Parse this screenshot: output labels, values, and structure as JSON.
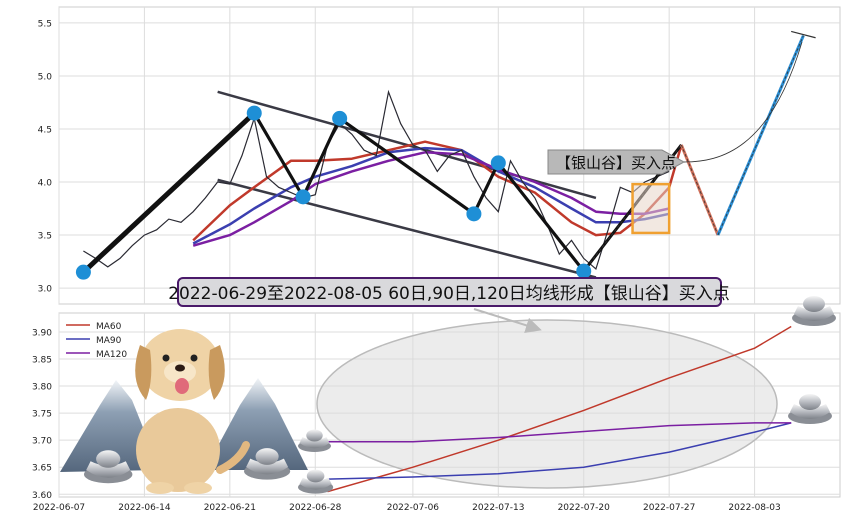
{
  "chart_data": [
    {
      "type": "line",
      "panel": "price",
      "ylim": [
        2.85,
        5.65
      ],
      "yticks": [
        "3.0",
        "3.5",
        "4.0",
        "4.5",
        "5.0",
        "5.5"
      ],
      "price_series": [
        [
          "2022-06-09",
          3.35
        ],
        [
          "2022-06-10",
          3.28
        ],
        [
          "2022-06-11",
          3.2
        ],
        [
          "2022-06-12",
          3.28
        ],
        [
          "2022-06-13",
          3.4
        ],
        [
          "2022-06-14",
          3.5
        ],
        [
          "2022-06-15",
          3.55
        ],
        [
          "2022-06-16",
          3.65
        ],
        [
          "2022-06-17",
          3.62
        ],
        [
          "2022-06-18",
          3.72
        ],
        [
          "2022-06-19",
          3.85
        ],
        [
          "2022-06-20",
          4.0
        ],
        [
          "2022-06-21",
          3.98
        ],
        [
          "2022-06-22",
          4.25
        ],
        [
          "2022-06-23",
          4.6
        ],
        [
          "2022-06-24",
          4.05
        ],
        [
          "2022-06-25",
          3.95
        ],
        [
          "2022-06-26",
          3.9
        ],
        [
          "2022-06-27",
          3.85
        ],
        [
          "2022-06-28",
          3.88
        ],
        [
          "2022-06-29",
          4.35
        ],
        [
          "2022-06-30",
          4.55
        ],
        [
          "2022-07-01",
          4.45
        ],
        [
          "2022-07-02",
          4.3
        ],
        [
          "2022-07-03",
          4.25
        ],
        [
          "2022-07-04",
          4.85
        ],
        [
          "2022-07-05",
          4.55
        ],
        [
          "2022-07-06",
          4.35
        ],
        [
          "2022-07-07",
          4.3
        ],
        [
          "2022-07-08",
          4.1
        ],
        [
          "2022-07-09",
          4.25
        ],
        [
          "2022-07-10",
          4.3
        ],
        [
          "2022-07-11",
          4.05
        ],
        [
          "2022-07-12",
          3.85
        ],
        [
          "2022-07-13",
          3.72
        ],
        [
          "2022-07-14",
          4.2
        ],
        [
          "2022-07-15",
          4.0
        ],
        [
          "2022-07-16",
          3.85
        ],
        [
          "2022-07-17",
          3.6
        ],
        [
          "2022-07-18",
          3.32
        ],
        [
          "2022-07-19",
          3.45
        ],
        [
          "2022-07-20",
          3.28
        ],
        [
          "2022-07-21",
          3.18
        ],
        [
          "2022-07-22",
          3.55
        ],
        [
          "2022-07-23",
          3.95
        ],
        [
          "2022-07-24",
          3.9
        ],
        [
          "2022-07-25",
          4.0
        ],
        [
          "2022-07-26",
          4.05
        ],
        [
          "2022-07-27",
          4.1
        ]
      ],
      "ma_series_price_panel": [
        {
          "color": "#c0392b",
          "points": [
            [
              "2022-06-18",
              3.45
            ],
            [
              "2022-06-21",
              3.78
            ],
            [
              "2022-06-23",
              3.95
            ],
            [
              "2022-06-26",
              4.2
            ],
            [
              "2022-06-28",
              4.2
            ],
            [
              "2022-07-01",
              4.22
            ],
            [
              "2022-07-04",
              4.3
            ],
            [
              "2022-07-07",
              4.38
            ],
            [
              "2022-07-10",
              4.3
            ],
            [
              "2022-07-13",
              4.05
            ],
            [
              "2022-07-16",
              3.9
            ],
            [
              "2022-07-19",
              3.62
            ],
            [
              "2022-07-21",
              3.5
            ],
            [
              "2022-07-23",
              3.52
            ],
            [
              "2022-07-25",
              3.7
            ],
            [
              "2022-07-27",
              3.95
            ],
            [
              "2022-07-28",
              4.35
            ]
          ]
        },
        {
          "color": "#3b3fb0",
          "points": [
            [
              "2022-06-18",
              3.42
            ],
            [
              "2022-06-21",
              3.6
            ],
            [
              "2022-06-23",
              3.75
            ],
            [
              "2022-06-26",
              3.95
            ],
            [
              "2022-06-28",
              4.05
            ],
            [
              "2022-07-01",
              4.15
            ],
            [
              "2022-07-04",
              4.28
            ],
            [
              "2022-07-07",
              4.32
            ],
            [
              "2022-07-10",
              4.3
            ],
            [
              "2022-07-13",
              4.1
            ],
            [
              "2022-07-16",
              3.95
            ],
            [
              "2022-07-19",
              3.75
            ],
            [
              "2022-07-21",
              3.62
            ],
            [
              "2022-07-23",
              3.62
            ],
            [
              "2022-07-25",
              3.65
            ],
            [
              "2022-07-27",
              3.7
            ]
          ]
        },
        {
          "color": "#7b1fa2",
          "points": [
            [
              "2022-06-18",
              3.4
            ],
            [
              "2022-06-21",
              3.5
            ],
            [
              "2022-06-23",
              3.62
            ],
            [
              "2022-06-26",
              3.82
            ],
            [
              "2022-06-28",
              3.98
            ],
            [
              "2022-07-01",
              4.1
            ],
            [
              "2022-07-04",
              4.2
            ],
            [
              "2022-07-07",
              4.28
            ],
            [
              "2022-07-10",
              4.26
            ],
            [
              "2022-07-13",
              4.12
            ],
            [
              "2022-07-16",
              4.0
            ],
            [
              "2022-07-19",
              3.85
            ],
            [
              "2022-07-21",
              3.72
            ],
            [
              "2022-07-23",
              3.7
            ],
            [
              "2022-07-25",
              3.7
            ],
            [
              "2022-07-27",
              3.75
            ]
          ]
        }
      ],
      "zigzag_points": [
        [
          "2022-06-09",
          3.15
        ],
        [
          "2022-06-23",
          4.65
        ],
        [
          "2022-06-27",
          3.86
        ],
        [
          "2022-06-30",
          4.6
        ],
        [
          "2022-07-11",
          3.7
        ],
        [
          "2022-07-13",
          4.18
        ],
        [
          "2022-07-20",
          3.16
        ]
      ],
      "channel_lines": [
        [
          [
            "2022-06-20",
            4.85
          ],
          [
            "2022-07-21",
            3.85
          ]
        ],
        [
          [
            "2022-06-20",
            4.02
          ],
          [
            "2022-07-21",
            3.1
          ]
        ]
      ],
      "projection": [
        [
          "2022-07-20",
          3.16
        ],
        [
          "2022-07-28",
          4.35
        ],
        [
          "2022-07-31",
          3.5
        ],
        [
          "2022-08-07",
          5.38
        ]
      ],
      "projection_cap": [
        [
          "2022-08-06",
          5.42
        ],
        [
          "2022-08-08",
          5.36
        ]
      ],
      "buy_box": {
        "x0": "2022-07-24",
        "x1": "2022-07-27",
        "y0": 3.52,
        "y1": 3.98
      },
      "buy_label": "【银山谷】买入点",
      "banner": "2022-06-29至2022-08-05 60日,90日,120日均线形成【银山谷】买入点"
    },
    {
      "type": "line",
      "panel": "moving-averages",
      "ylim": [
        3.595,
        3.935
      ],
      "yticks": [
        "3.60",
        "3.65",
        "3.70",
        "3.75",
        "3.80",
        "3.85",
        "3.90"
      ],
      "x_tick_labels": [
        "2022-06-07",
        "2022-06-14",
        "2022-06-21",
        "2022-06-28",
        "2022-07-06",
        "2022-07-13",
        "2022-07-20",
        "2022-07-27",
        "2022-08-03"
      ],
      "series": [
        {
          "name": "MA60",
          "color": "#c0392b",
          "points": [
            [
              "2022-06-29",
              3.605
            ],
            [
              "2022-07-06",
              3.65
            ],
            [
              "2022-07-13",
              3.7
            ],
            [
              "2022-07-20",
              3.755
            ],
            [
              "2022-07-27",
              3.815
            ],
            [
              "2022-08-03",
              3.87
            ],
            [
              "2022-08-06",
              3.91
            ]
          ]
        },
        {
          "name": "MA90",
          "color": "#3b3fb0",
          "points": [
            [
              "2022-06-29",
              3.628
            ],
            [
              "2022-07-06",
              3.632
            ],
            [
              "2022-07-13",
              3.638
            ],
            [
              "2022-07-20",
              3.65
            ],
            [
              "2022-07-27",
              3.678
            ],
            [
              "2022-08-03",
              3.715
            ],
            [
              "2022-08-06",
              3.732
            ]
          ]
        },
        {
          "name": "MA120",
          "color": "#7b1fa2",
          "points": [
            [
              "2022-06-29",
              3.697
            ],
            [
              "2022-07-06",
              3.697
            ],
            [
              "2022-07-13",
              3.705
            ],
            [
              "2022-07-20",
              3.716
            ],
            [
              "2022-07-27",
              3.727
            ],
            [
              "2022-08-03",
              3.732
            ],
            [
              "2022-08-06",
              3.732
            ]
          ]
        }
      ]
    }
  ],
  "colors": {
    "accent_blue": "#1e8fd6",
    "ellipse": "#d9d9d9",
    "box_orange": "#f0a030"
  },
  "icons": [
    "dog-mascot-icon",
    "mountain-icon",
    "silver-ingot-icon"
  ]
}
